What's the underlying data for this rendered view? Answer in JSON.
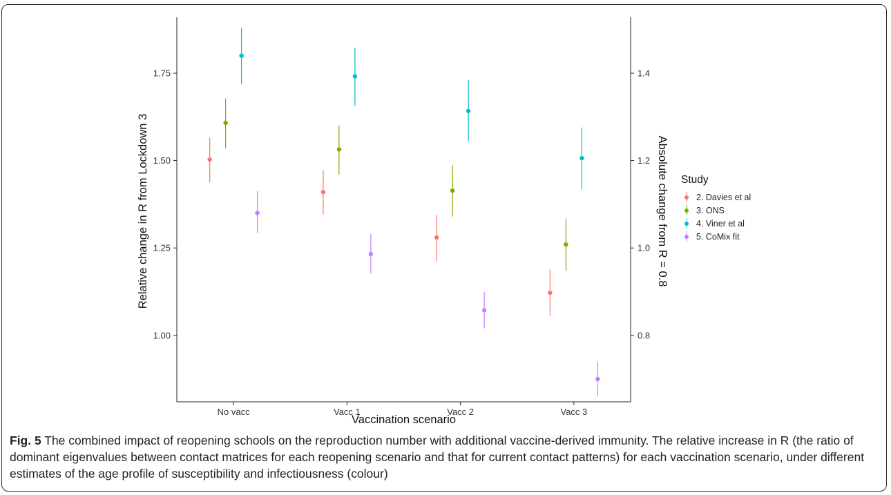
{
  "chart_data": {
    "type": "scatter",
    "subtype": "point-range",
    "xlabel": "Vaccination scenario",
    "ylabel": "Relative change in R from Lockdown 3",
    "ylabel_right": "Absolute change from R = 0.8",
    "categories": [
      "No vacc",
      "Vacc 1",
      "Vacc 2",
      "Vacc 3"
    ],
    "ylim": [
      0.81,
      1.91
    ],
    "y_ticks": [
      1.0,
      1.25,
      1.5,
      1.75
    ],
    "y_tick_labels": [
      "1.00",
      "1.25",
      "1.50",
      "1.75"
    ],
    "y2_ticks": [
      0.8,
      1.0,
      1.2,
      1.4
    ],
    "y2_tick_labels": [
      "0.8",
      "1.0",
      "1.2",
      "1.4"
    ],
    "grid": false,
    "legend_position": "right",
    "legend_title": "Study",
    "series": [
      {
        "name": "2. Davies et al",
        "color": "#F8766D",
        "values": [
          1.503,
          1.41,
          1.28,
          1.122
        ],
        "lower": [
          1.438,
          1.345,
          1.213,
          1.056
        ],
        "upper": [
          1.565,
          1.473,
          1.345,
          1.189
        ]
      },
      {
        "name": "3. ONS",
        "color": "#7CAE00",
        "values": [
          1.608,
          1.532,
          1.414,
          1.26
        ],
        "lower": [
          1.535,
          1.46,
          1.34,
          1.185
        ],
        "upper": [
          1.678,
          1.6,
          1.487,
          1.333
        ]
      },
      {
        "name": "4. Viner et al",
        "color": "#00BFC4",
        "values": [
          1.8,
          1.741,
          1.642,
          1.507
        ],
        "lower": [
          1.718,
          1.657,
          1.555,
          1.418
        ],
        "upper": [
          1.88,
          1.823,
          1.73,
          1.595
        ]
      },
      {
        "name": "5. CoMix fit",
        "color": "#C77CFF",
        "values": [
          1.35,
          1.233,
          1.072,
          0.875
        ],
        "lower": [
          1.293,
          1.177,
          1.02,
          0.826
        ],
        "upper": [
          1.412,
          1.29,
          1.125,
          0.925
        ]
      }
    ]
  },
  "caption": {
    "label": "Fig. 5",
    "text": " The combined impact of reopening schools on the reproduction number with additional vaccine-derived immunity. The relative increase in R (the ratio of dominant eigenvalues between contact matrices for each reopening scenario and that for current contact patterns) for each vaccination scenario, under different estimates of the age profile of susceptibility and infectiousness (colour)"
  }
}
